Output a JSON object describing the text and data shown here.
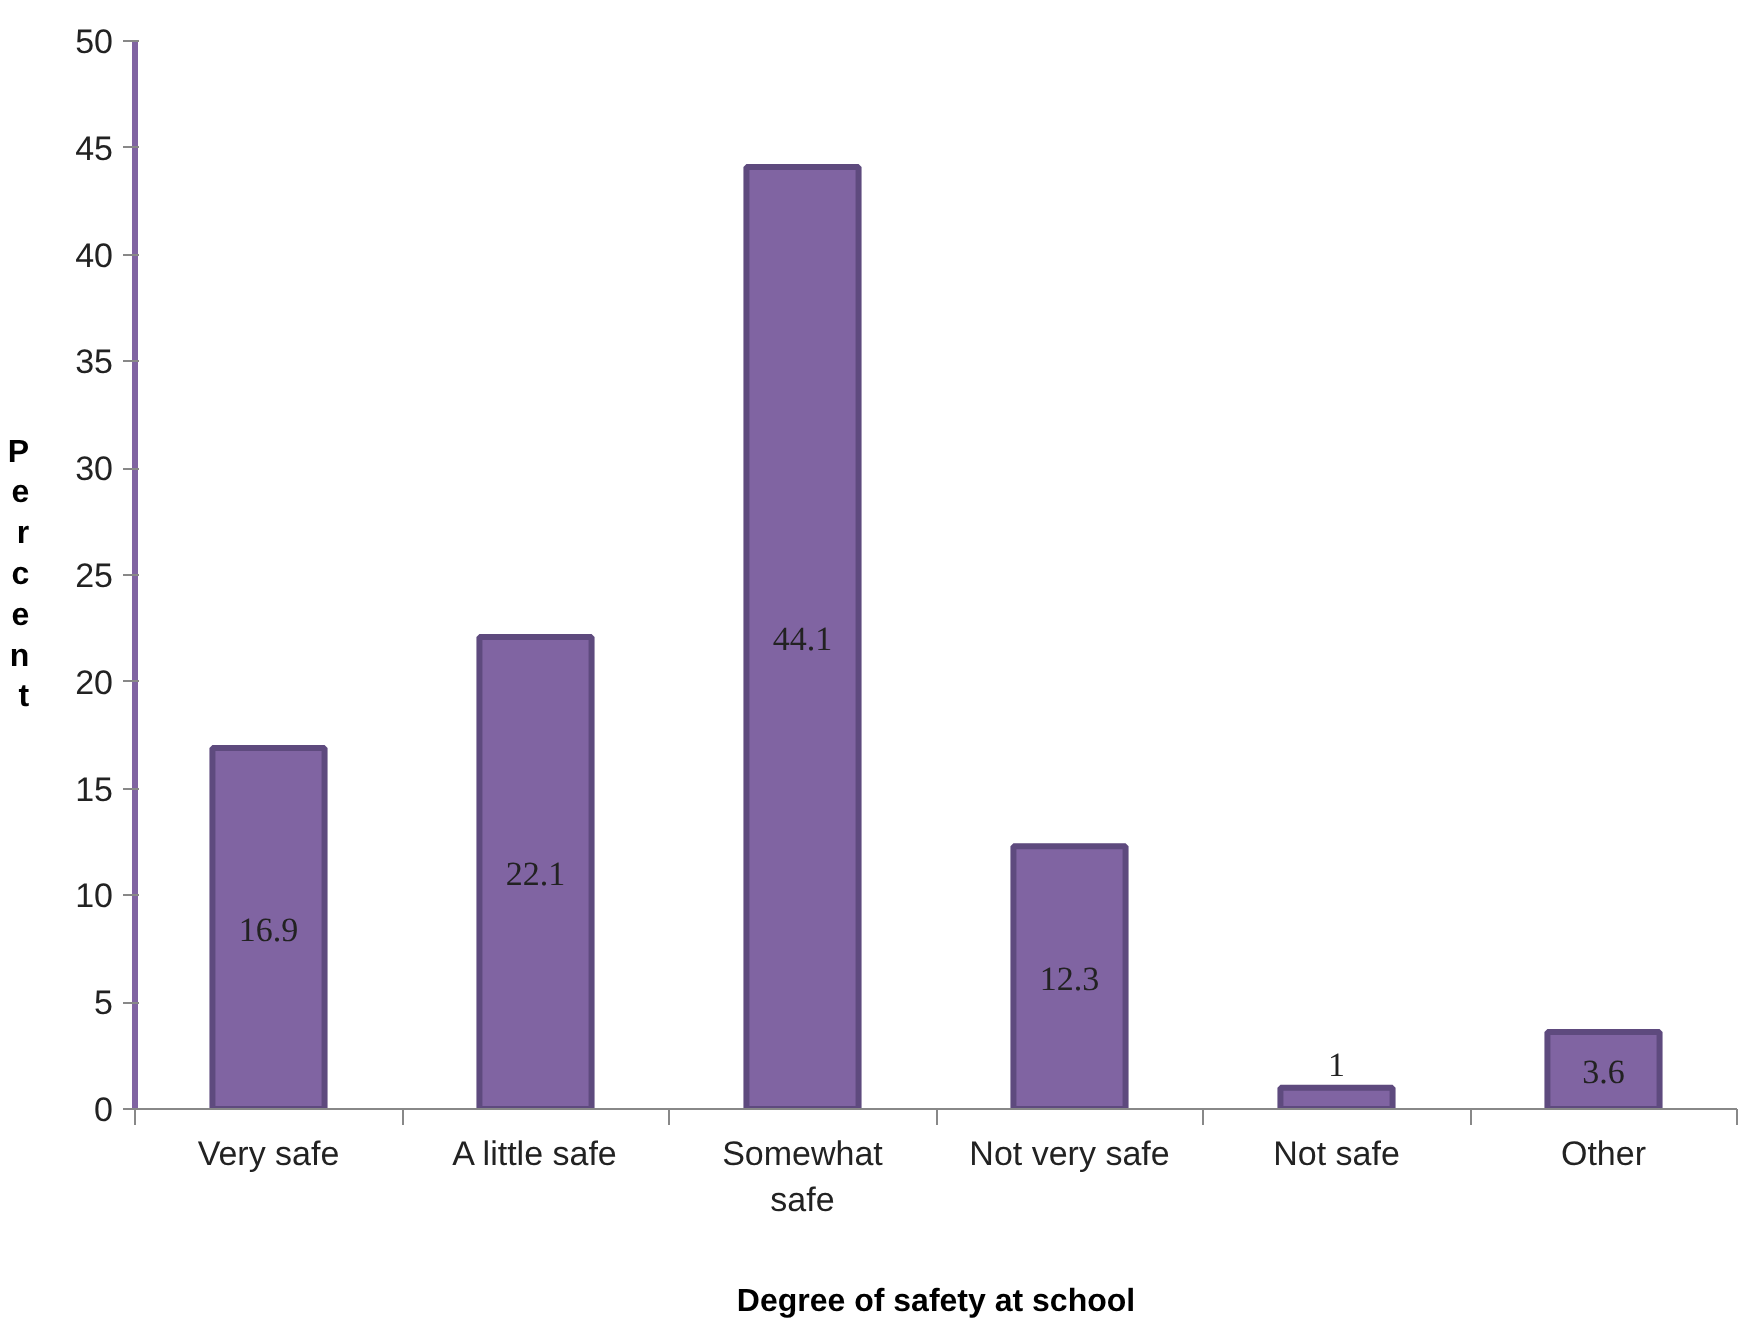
{
  "chart_data": {
    "type": "bar",
    "xlabel": "Degree of safety at school",
    "ylabel": "Percent",
    "categories": [
      "Very safe",
      "A little safe",
      "Somewhat safe",
      "Not very safe",
      "Not safe",
      "Other"
    ],
    "values": [
      16.9,
      22.1,
      44.1,
      12.3,
      1,
      3.6
    ],
    "color": "#8064a2",
    "ylim": [
      0,
      50
    ],
    "yticks": [
      0,
      5,
      10,
      15,
      20,
      25,
      30,
      35,
      40,
      45,
      50
    ],
    "grid": false,
    "data_labels": true
  }
}
